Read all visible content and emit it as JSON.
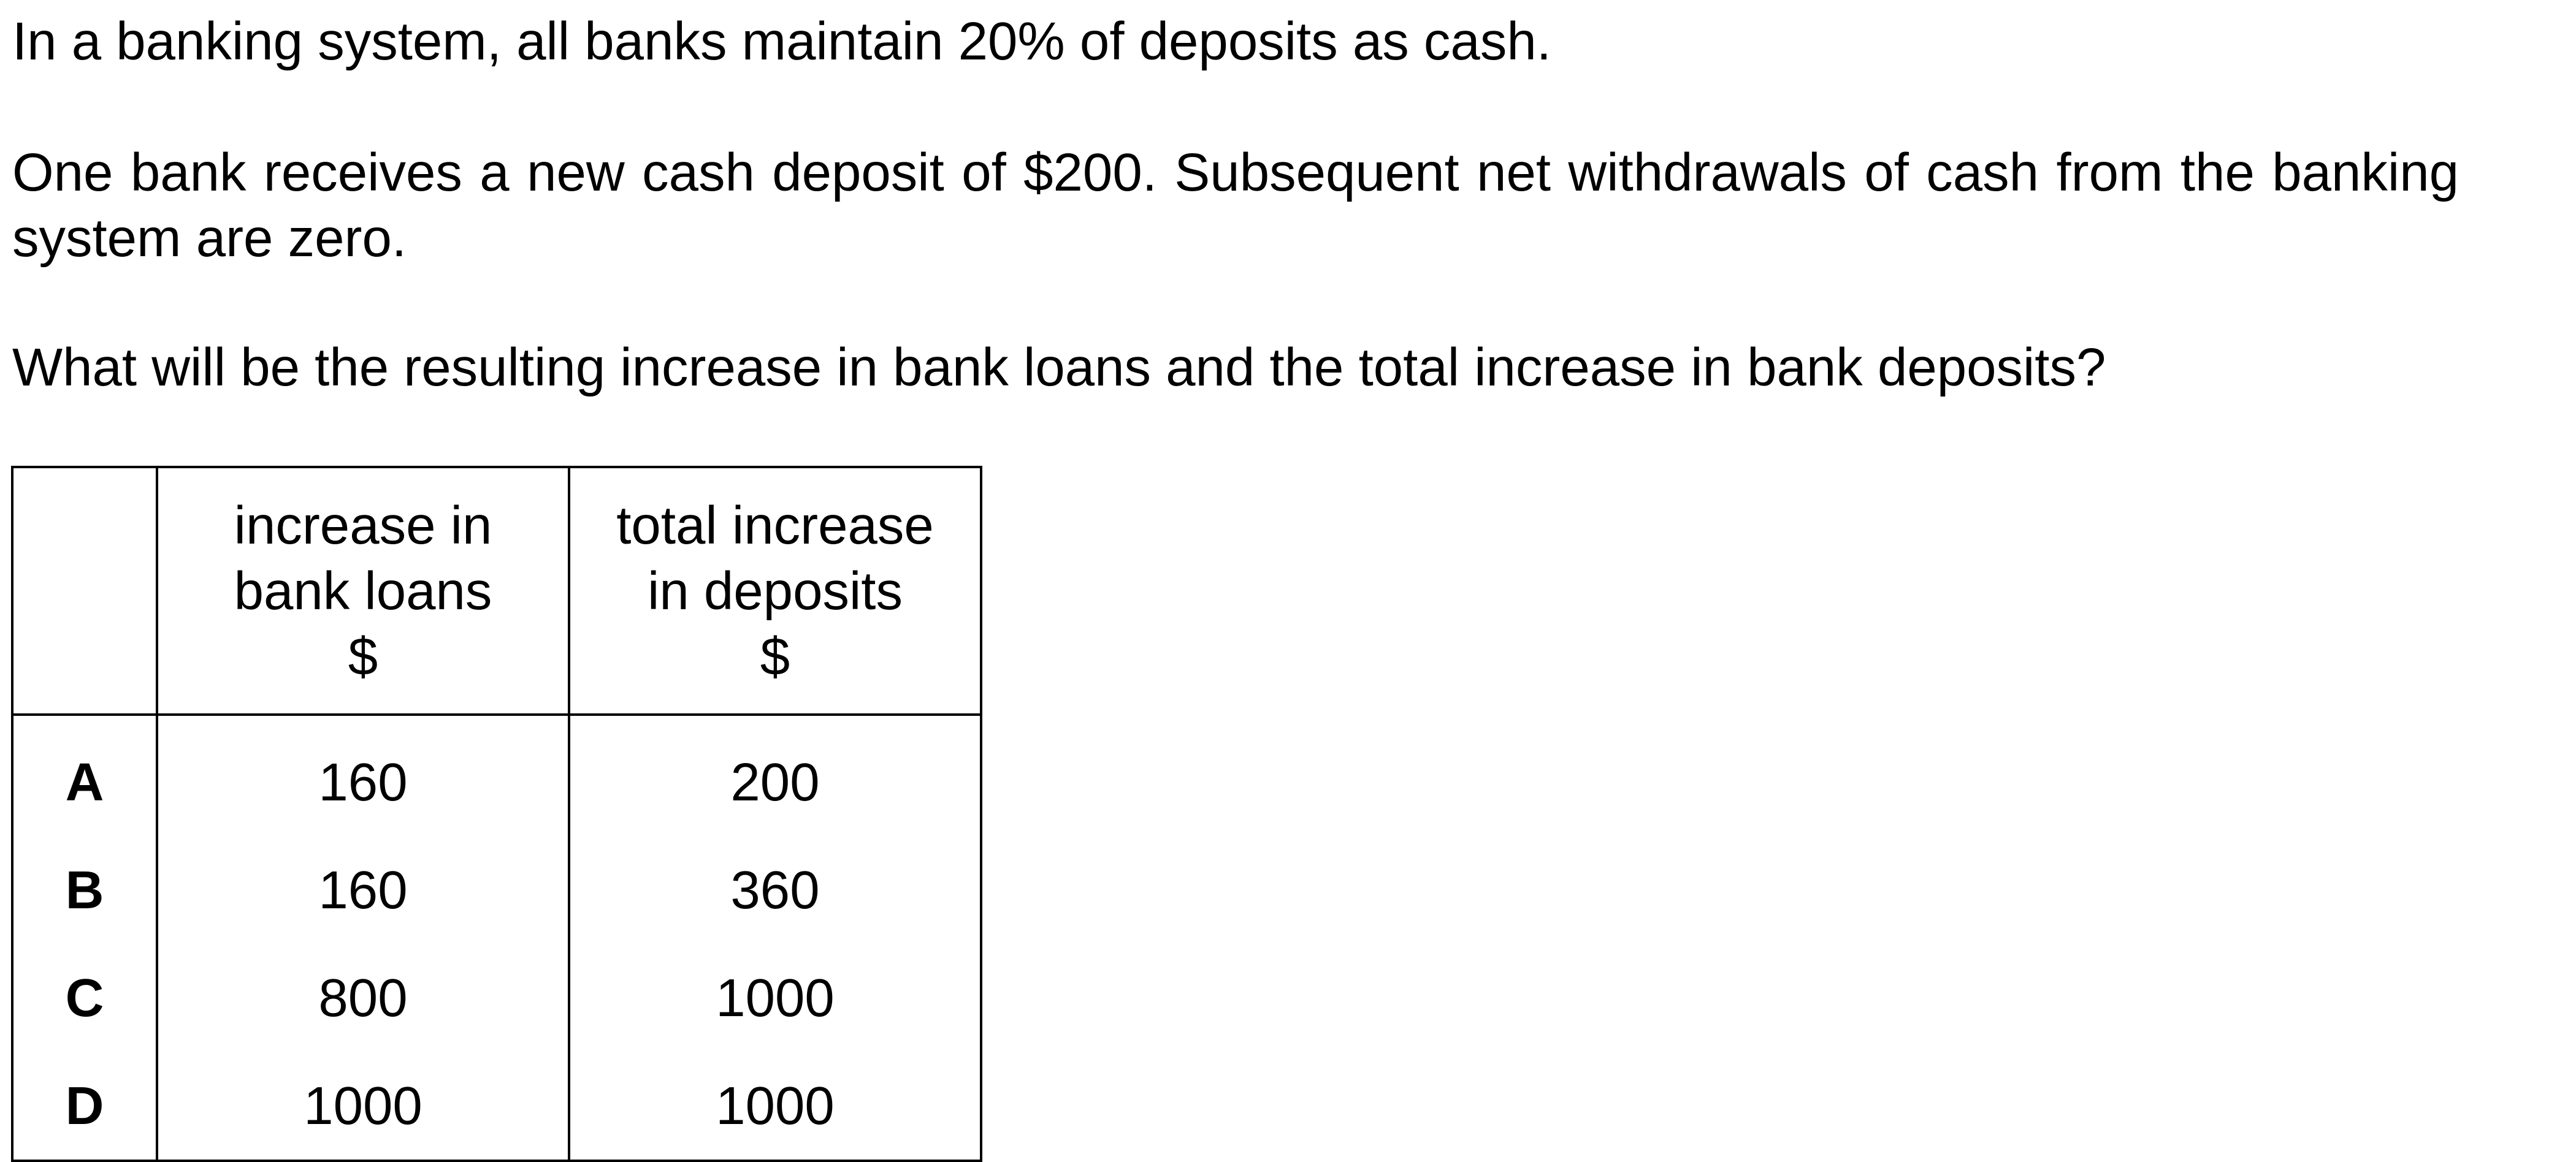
{
  "question": {
    "paragraph_1": "In a banking system, all banks maintain 20% of deposits as cash.",
    "paragraph_2": "One bank receives a new cash deposit of $200. Subsequent net withdrawals of cash from the banking system are zero.",
    "paragraph_3": "What will be the resulting increase in bank loans and the total increase in bank deposits?"
  },
  "table": {
    "headers": {
      "letter": "",
      "loans": [
        "increase in",
        "bank loans",
        "$"
      ],
      "deposits": [
        "total increase",
        "in deposits",
        "$"
      ]
    },
    "rows": [
      {
        "letter": "A",
        "loans": "160",
        "deposits": "200"
      },
      {
        "letter": "B",
        "loans": "160",
        "deposits": "360"
      },
      {
        "letter": "C",
        "loans": "800",
        "deposits": "1000"
      },
      {
        "letter": "D",
        "loans": "1000",
        "deposits": "1000"
      }
    ]
  }
}
